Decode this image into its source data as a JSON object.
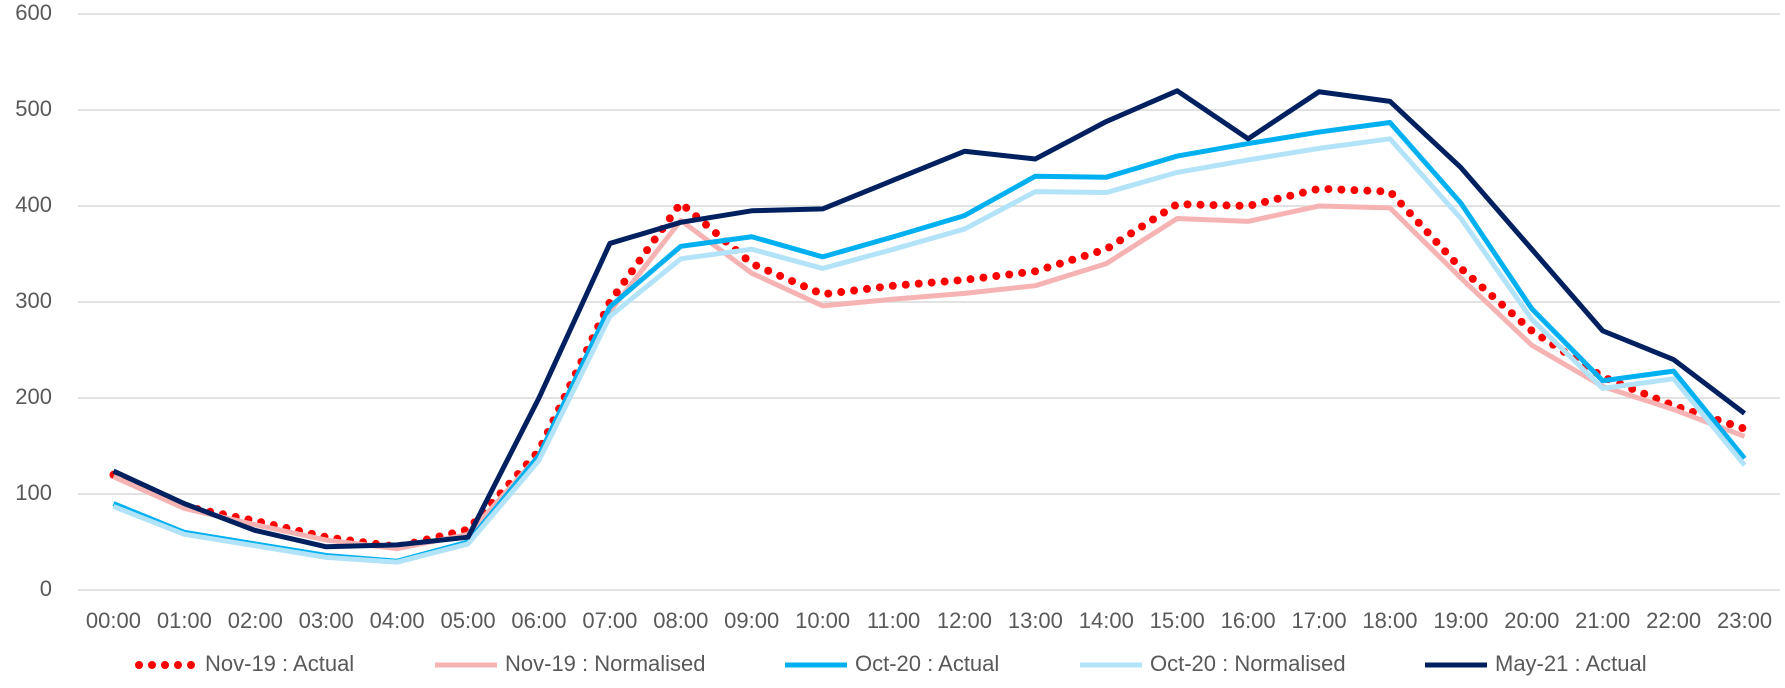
{
  "chart_data": {
    "type": "line",
    "categories": [
      "00:00",
      "01:00",
      "02:00",
      "03:00",
      "04:00",
      "05:00",
      "06:00",
      "07:00",
      "08:00",
      "09:00",
      "10:00",
      "11:00",
      "12:00",
      "13:00",
      "14:00",
      "15:00",
      "16:00",
      "17:00",
      "18:00",
      "19:00",
      "20:00",
      "21:00",
      "22:00",
      "23:00"
    ],
    "series": [
      {
        "name": "Nov-19 : Actual",
        "color": "#ff0000",
        "style": "dotted",
        "values": [
          120,
          87,
          72,
          55,
          45,
          63,
          145,
          300,
          403,
          340,
          308,
          317,
          323,
          332,
          355,
          402,
          400,
          418,
          415,
          335,
          270,
          222,
          192,
          168
        ]
      },
      {
        "name": "Nov-19 : Normalised",
        "color": "#f6b3b3",
        "values": [
          118,
          85,
          68,
          52,
          43,
          58,
          140,
          290,
          385,
          330,
          296,
          303,
          309,
          317,
          340,
          387,
          384,
          400,
          398,
          325,
          255,
          212,
          188,
          160
        ]
      },
      {
        "name": "Oct-20 : Actual",
        "color": "#00b0f0",
        "values": [
          90,
          60,
          48,
          36,
          30,
          50,
          140,
          295,
          358,
          368,
          347,
          368,
          390,
          431,
          430,
          452,
          465,
          477,
          487,
          403,
          293,
          218,
          228,
          137
        ]
      },
      {
        "name": "Oct-20 : Normalised",
        "color": "#b3e3f8",
        "values": [
          87,
          58,
          46,
          34,
          29,
          48,
          135,
          285,
          345,
          355,
          335,
          355,
          376,
          415,
          414,
          435,
          448,
          460,
          470,
          387,
          282,
          210,
          220,
          130
        ]
      },
      {
        "name": "May-21 : Actual",
        "color": "#002060",
        "values": [
          124,
          90,
          62,
          45,
          47,
          55,
          200,
          361,
          383,
          395,
          397,
          427,
          457,
          449,
          488,
          520,
          470,
          519,
          509,
          440,
          355,
          270,
          240,
          184
        ]
      }
    ],
    "ylim": [
      0,
      600
    ],
    "yticks": [
      0,
      100,
      200,
      300,
      400,
      500,
      600
    ],
    "grid": true,
    "legend": "bottom"
  }
}
